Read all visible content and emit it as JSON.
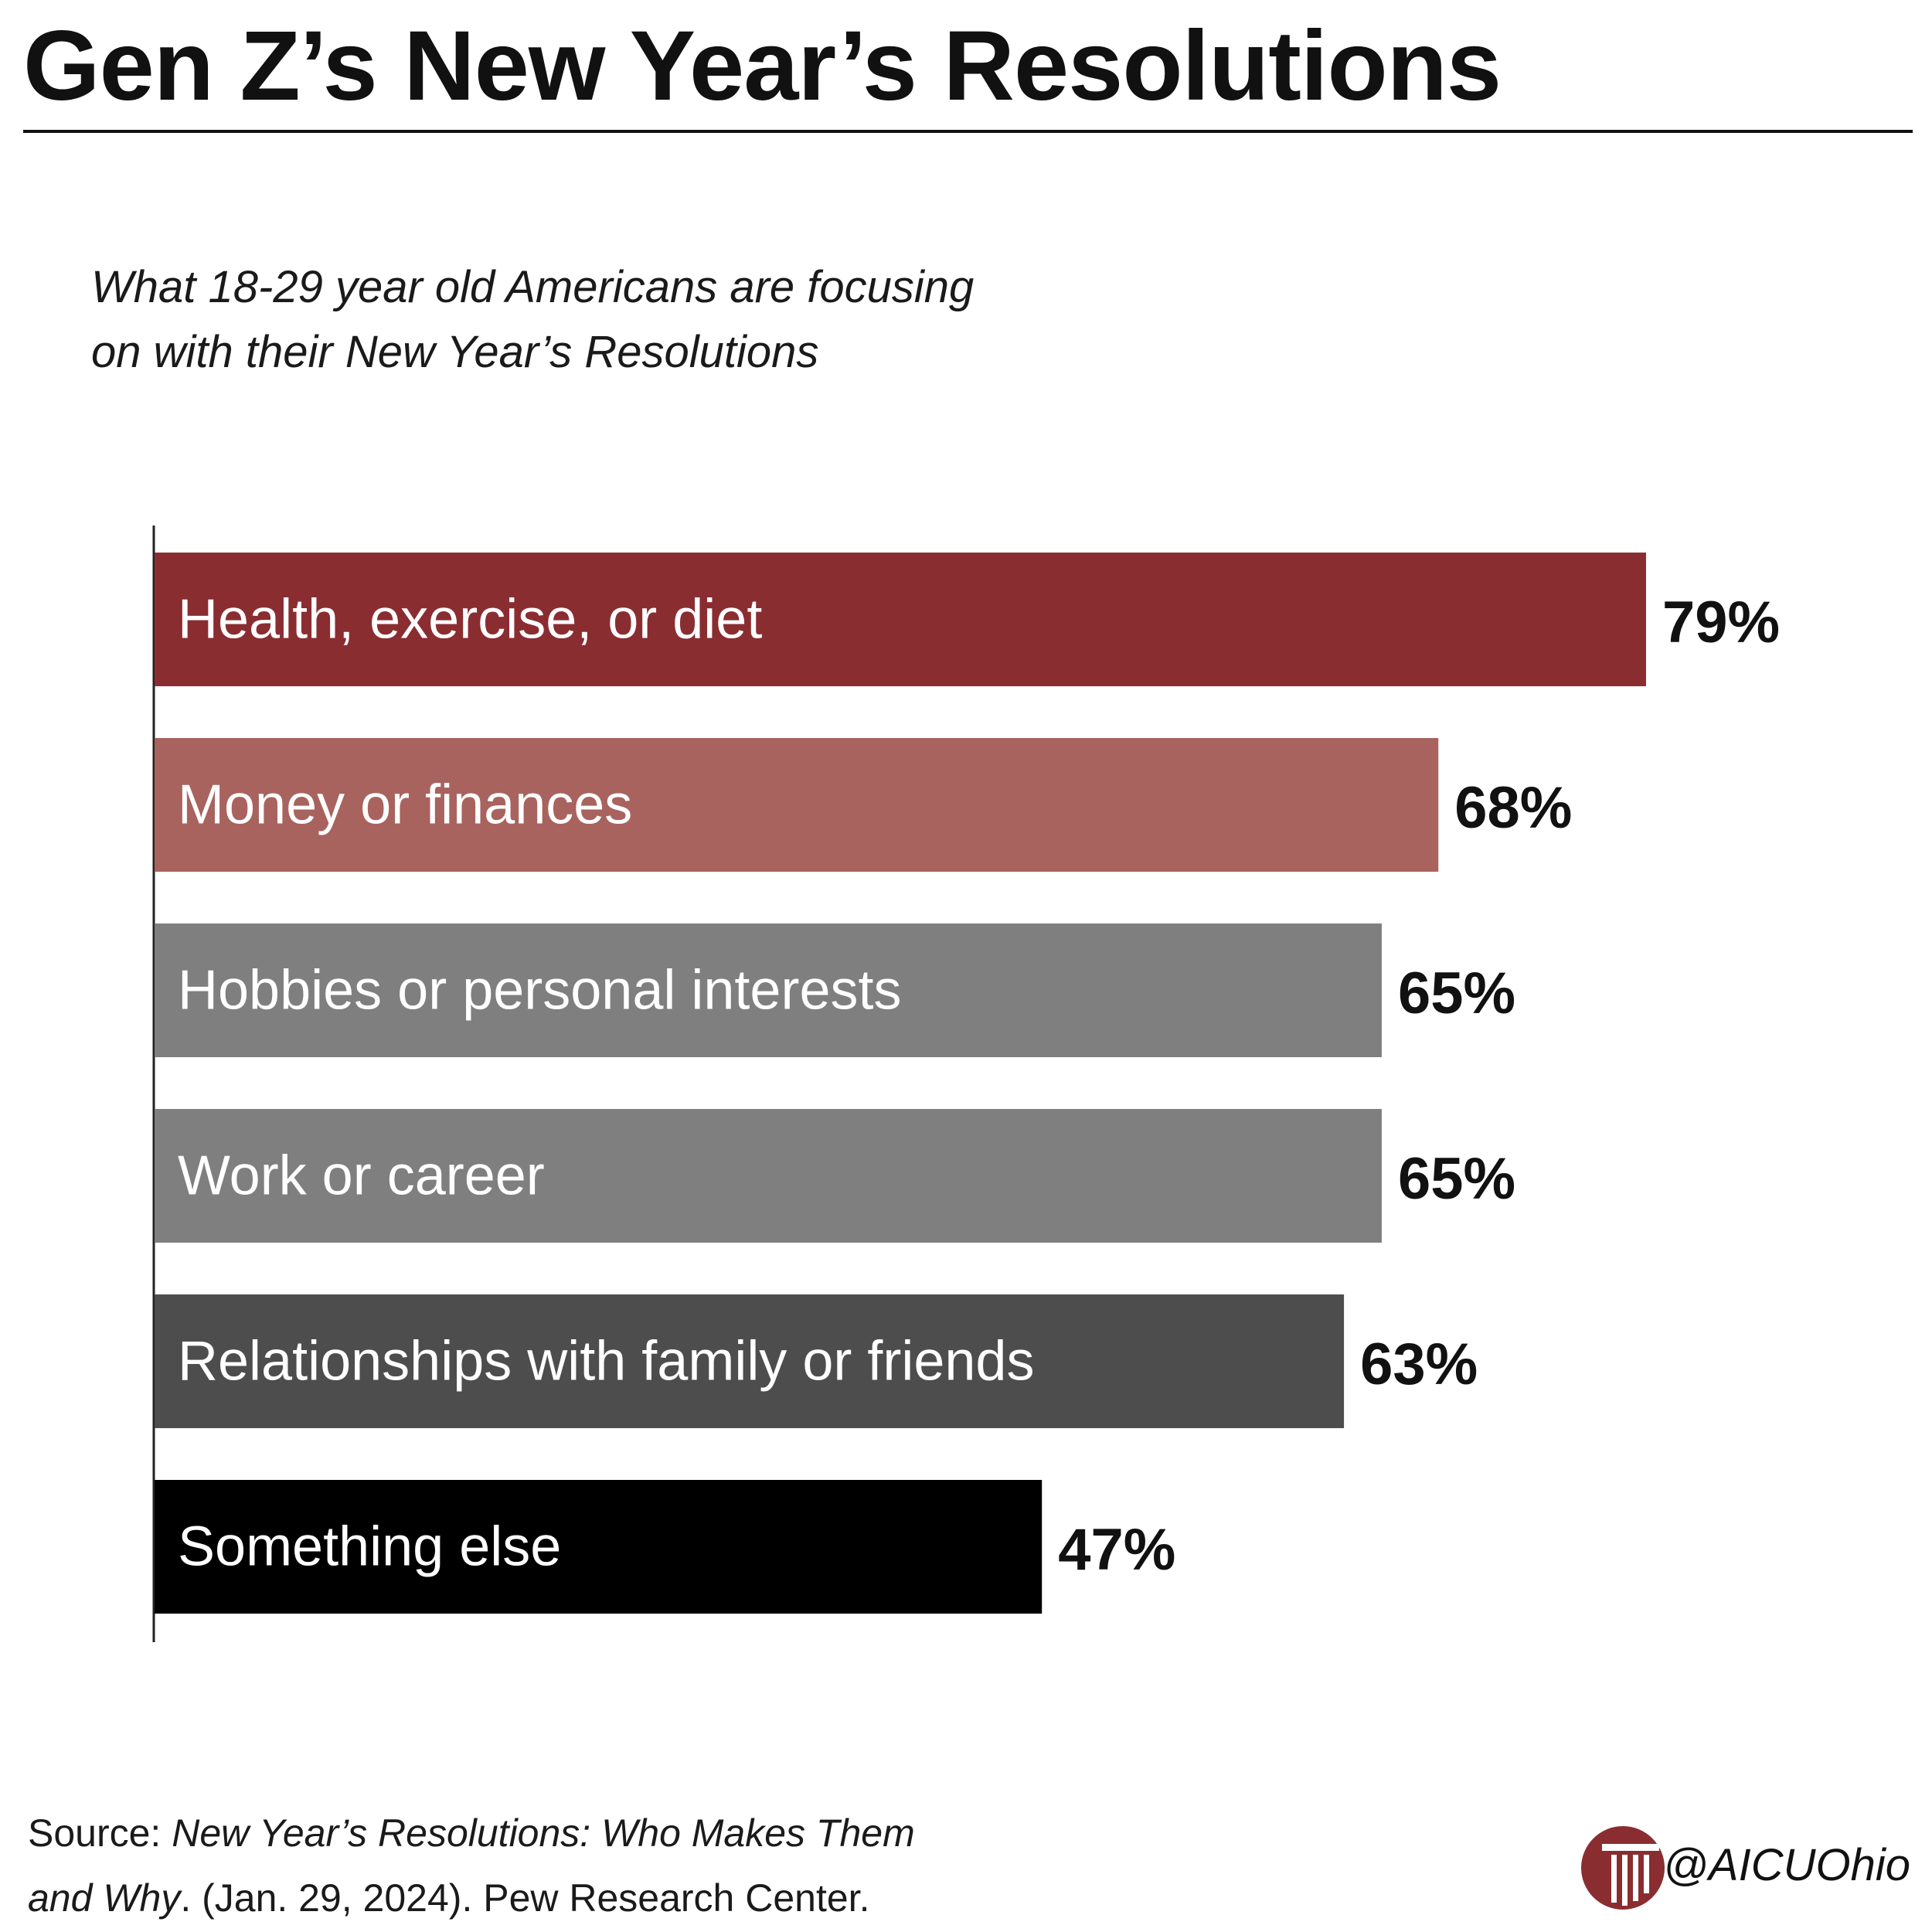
{
  "header": {
    "title": "Gen Z’s New Year’s Resolutions",
    "subtitle_line1": "What 18-29 year old Americans are focusing",
    "subtitle_line2": "on with their New Year’s Resolutions"
  },
  "chart_data": {
    "type": "bar",
    "orientation": "horizontal",
    "title": "Gen Z’s New Year’s Resolutions",
    "subtitle": "What 18-29 year old Americans are focusing on with their New Year’s Resolutions",
    "categories": [
      "Health, exercise, or diet",
      "Money or finances",
      "Hobbies or personal interests",
      "Work or career",
      "Relationships with family or friends",
      "Something else"
    ],
    "values": [
      79,
      68,
      65,
      65,
      63,
      47
    ],
    "value_labels": [
      "79%",
      "68%",
      "65%",
      "65%",
      "63%",
      "47%"
    ],
    "bar_colors": [
      "#8a2d31",
      "#a8635e",
      "#7f7f7f",
      "#7f7f7f",
      "#4d4d4d",
      "#000000"
    ],
    "xlim": [
      0,
      100
    ],
    "grid": false,
    "legend": "none"
  },
  "footer": {
    "source_prefix": "Source: ",
    "source_title": "New Year’s Resolutions: Who Makes Them",
    "source_title_end": "and Why",
    "source_rest": ". (Jan. 29, 2024). Pew Research Center.",
    "handle": "@AICUOhio",
    "logo_icon": "column-logo-icon",
    "logo_color": "#8a2d31"
  }
}
